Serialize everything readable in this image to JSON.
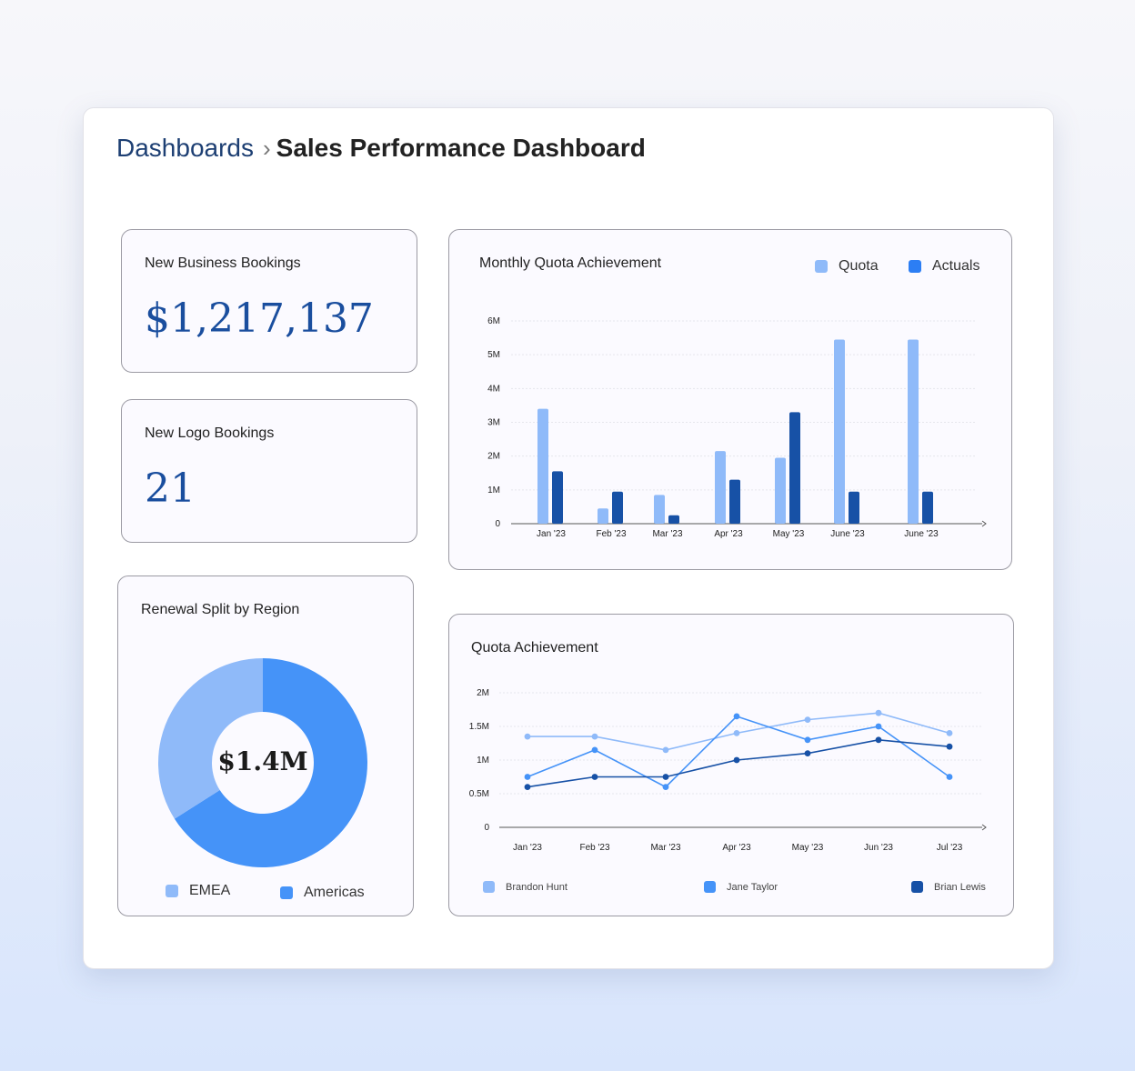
{
  "breadcrumb": {
    "root": "Dashboards",
    "current": "Sales Performance Dashboard"
  },
  "kpis": {
    "new_business": {
      "label": "New Business Bookings",
      "value": "$1,217,137"
    },
    "new_logo": {
      "label": "New Logo Bookings",
      "value": "21"
    }
  },
  "colors": {
    "accent_text": "#1a4e9e",
    "light_blue": "#8fbaf9",
    "mid_blue": "#4593f8",
    "dark_blue": "#1751a6"
  },
  "renewal_split": {
    "title": "Renewal Split by Region",
    "center_label": "$1.4M",
    "legend": [
      {
        "name": "EMEA",
        "color": "#8fbaf9"
      },
      {
        "name": "Americas",
        "color": "#4593f8"
      }
    ]
  },
  "monthly_quota": {
    "title": "Monthly Quota Achievement",
    "legend": [
      {
        "name": "Quota",
        "color": "#8fbaf9"
      },
      {
        "name": "Actuals",
        "color": "#2c7ef4"
      }
    ]
  },
  "quota_achievement": {
    "title": "Quota Achievement",
    "legend": [
      {
        "name": "Brandon Hunt",
        "color": "#8fbaf9"
      },
      {
        "name": "Jane Taylor",
        "color": "#4593f8"
      },
      {
        "name": "Brian Lewis",
        "color": "#1751a6"
      }
    ]
  },
  "chart_data": [
    {
      "type": "bar",
      "title": "Monthly Quota Achievement",
      "categories": [
        "Jan '23",
        "Feb '23",
        "Mar '23",
        "Apr '23",
        "May '23",
        "June '23",
        "June '23"
      ],
      "series": [
        {
          "name": "Quota",
          "color": "#8fbaf9",
          "values": [
            3.4,
            0.45,
            0.85,
            2.15,
            1.95,
            5.45,
            5.45
          ]
        },
        {
          "name": "Actuals",
          "color": "#1751a6",
          "values": [
            1.55,
            0.95,
            0.25,
            1.3,
            3.3,
            0.95,
            0.95
          ]
        }
      ],
      "y_ticks": [
        0,
        1,
        2,
        3,
        4,
        5,
        6
      ],
      "y_tick_labels": [
        "0",
        "1M",
        "2M",
        "3M",
        "4M",
        "5M",
        "6M"
      ],
      "ylim": [
        0,
        6
      ],
      "grid": true
    },
    {
      "type": "line",
      "title": "Quota Achievement",
      "categories": [
        "Jan '23",
        "Feb '23",
        "Mar '23",
        "Apr '23",
        "May '23",
        "Jun '23",
        "Jul '23"
      ],
      "series": [
        {
          "name": "Brandon Hunt",
          "color": "#8fbaf9",
          "values": [
            1.35,
            1.35,
            1.15,
            1.4,
            1.6,
            1.7,
            1.4
          ]
        },
        {
          "name": "Jane Taylor",
          "color": "#4593f8",
          "values": [
            0.75,
            1.15,
            0.6,
            1.65,
            1.3,
            1.5,
            0.75
          ]
        },
        {
          "name": "Brian Lewis",
          "color": "#1751a6",
          "values": [
            0.6,
            0.75,
            0.75,
            1.0,
            1.1,
            1.3,
            1.2
          ]
        }
      ],
      "y_ticks": [
        0,
        0.5,
        1,
        1.5,
        2
      ],
      "y_tick_labels": [
        "0",
        "0.5M",
        "1M",
        "1.5M",
        "2M"
      ],
      "ylim": [
        0,
        2
      ],
      "grid": true
    },
    {
      "type": "pie",
      "title": "Renewal Split by Region",
      "categories": [
        "EMEA",
        "Americas"
      ],
      "values": [
        34,
        66
      ],
      "colors": [
        "#8fbaf9",
        "#4593f8"
      ],
      "center_label": "$1.4M"
    }
  ]
}
